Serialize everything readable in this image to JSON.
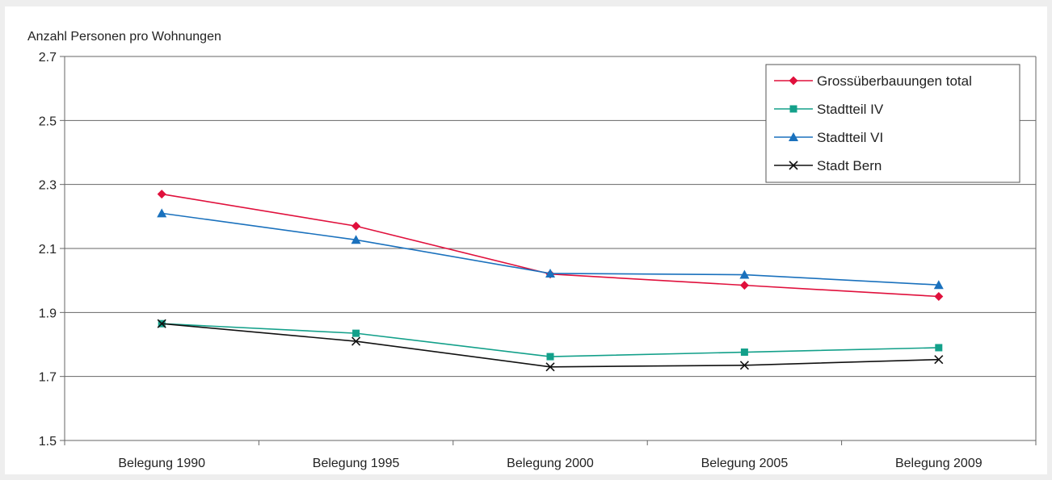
{
  "chart_data": {
    "type": "line",
    "ylabel": "Anzahl Personen pro Wohnungen",
    "categories": [
      "Belegung 1990",
      "Belegung 1995",
      "Belegung 2000",
      "Belegung 2005",
      "Belegung 2009"
    ],
    "ylim": [
      1.5,
      2.7
    ],
    "yticks": [
      "1.5",
      "1.7",
      "1.9",
      "2.1",
      "2.3",
      "2.5",
      "2.7"
    ],
    "grid": true,
    "legend_position": "top-right",
    "series": [
      {
        "name": "Grossüberbauungen total",
        "color": "#e0103c",
        "marker": "diamond",
        "values": [
          2.27,
          2.17,
          2.02,
          1.985,
          1.95
        ]
      },
      {
        "name": "Stadtteil IV",
        "color": "#13a08a",
        "marker": "square",
        "values": [
          1.865,
          1.835,
          1.762,
          1.776,
          1.79
        ]
      },
      {
        "name": "Stadtteil VI",
        "color": "#1a71bd",
        "marker": "triangle",
        "values": [
          2.21,
          2.127,
          2.022,
          2.018,
          1.986
        ]
      },
      {
        "name": "Stadt Bern",
        "color": "#111111",
        "marker": "cross",
        "values": [
          1.865,
          1.81,
          1.73,
          1.735,
          1.753
        ]
      }
    ]
  }
}
